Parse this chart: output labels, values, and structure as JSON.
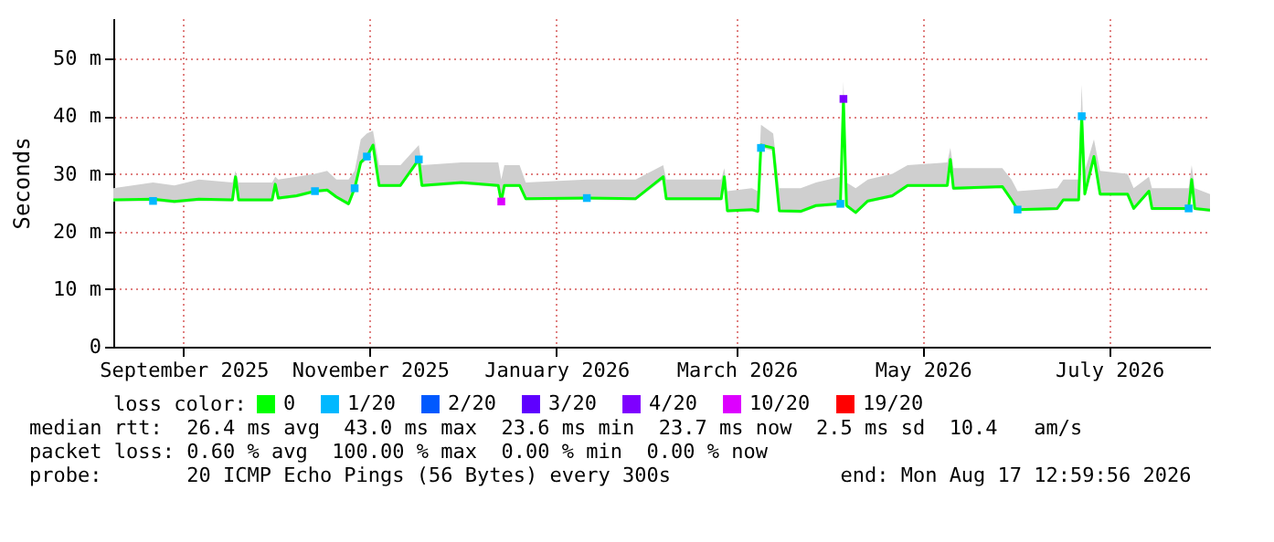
{
  "chart_data": {
    "type": "line",
    "ylabel": "Seconds",
    "legend_title": "loss color:",
    "annotations": [
      "median rtt:  26.4 ms avg  43.0 ms max  23.6 ms min  23.7 ms now  2.5 ms sd  10.4   am/s",
      "packet loss: 0.60 % avg  100.00 % max  0.00 % min  0.00 % now",
      "probe:       20 ICMP Echo Pings (56 Bytes) every 300s              end: Mon Aug 17 12:59:56 2026"
    ],
    "x": [
      "2025-08-23",
      "2025-09-05",
      "2025-09-12",
      "2025-09-20",
      "2025-10-01",
      "2025-10-02",
      "2025-10-03",
      "2025-10-14",
      "2025-10-15",
      "2025-10-16",
      "2025-10-22",
      "2025-10-28",
      "2025-11-01",
      "2025-11-04",
      "2025-11-08",
      "2025-11-10",
      "2025-11-12",
      "2025-11-14",
      "2025-11-16",
      "2025-11-18",
      "2025-11-25",
      "2025-12-01",
      "2025-12-02",
      "2025-12-15",
      "2025-12-27",
      "2025-12-28",
      "2025-12-29",
      "2026-01-03",
      "2026-01-05",
      "2026-01-25",
      "2026-02-10",
      "2026-02-19",
      "2026-02-20",
      "2026-03-10",
      "2026-03-11",
      "2026-03-12",
      "2026-03-20",
      "2026-03-22",
      "2026-03-23",
      "2026-03-27",
      "2026-03-29",
      "2026-04-05",
      "2026-04-10",
      "2026-04-18",
      "2026-04-19",
      "2026-04-20",
      "2026-04-23",
      "2026-04-27",
      "2026-05-05",
      "2026-05-10",
      "2026-05-23",
      "2026-05-24",
      "2026-05-25",
      "2026-06-10",
      "2026-06-13",
      "2026-06-15",
      "2026-06-28",
      "2026-06-30",
      "2026-07-05",
      "2026-07-06",
      "2026-07-07",
      "2026-07-10",
      "2026-07-12",
      "2026-07-21",
      "2026-07-23",
      "2026-07-28",
      "2026-07-29",
      "2026-08-10",
      "2026-08-11",
      "2026-08-12",
      "2026-08-17"
    ],
    "series": [
      {
        "name": "0",
        "color": "#00ff00",
        "values": [
          25.5,
          25.6,
          25.2,
          25.6,
          25.5,
          29.5,
          25.5,
          25.5,
          28.2,
          25.8,
          26.2,
          27,
          27.2,
          26,
          24.8,
          27.5,
          32,
          33,
          35,
          28,
          28,
          32.5,
          28,
          28.5,
          28,
          25.2,
          28,
          28,
          25.7,
          25.8,
          25.7,
          29.5,
          25.7,
          25.7,
          29.5,
          23.6,
          23.8,
          23.5,
          35,
          34.5,
          23.6,
          23.5,
          24.5,
          24.8,
          43,
          24.5,
          23.3,
          25.3,
          26.2,
          28,
          28,
          32.5,
          27.5,
          27.8,
          25.5,
          23.8,
          24,
          25.5,
          25.5,
          40,
          26.5,
          33,
          26.5,
          26.5,
          24,
          27,
          24,
          24,
          29,
          24,
          23.7
        ],
        "lower": [
          25.2,
          25.3,
          24.9,
          25.3,
          25.2,
          29,
          25.2,
          25.2,
          27.8,
          25.5,
          25.9,
          26.7,
          26.9,
          25.7,
          24.5,
          27.2,
          31.5,
          32.5,
          34.5,
          27.7,
          27.7,
          32,
          27.7,
          28.2,
          27.7,
          24.9,
          27.7,
          27.7,
          25.4,
          25.5,
          25.4,
          29,
          25.4,
          25.4,
          29,
          23.3,
          23.5,
          23.2,
          34.5,
          34,
          23.3,
          23.2,
          24.2,
          24.5,
          42.5,
          24.2,
          23,
          25,
          25.9,
          27.7,
          27.7,
          32,
          27.2,
          27.5,
          25.2,
          23.5,
          23.7,
          25.2,
          25.2,
          39.5,
          26.2,
          32.5,
          26.2,
          26.2,
          23.7,
          26.7,
          23.7,
          23.7,
          28.5,
          23.7,
          23.4
        ],
        "upper": [
          27.5,
          28.5,
          28,
          29,
          28.5,
          30.5,
          28.5,
          28.5,
          29.5,
          29,
          29.5,
          30,
          30.5,
          29,
          29,
          30.5,
          36,
          37,
          37.5,
          31.5,
          31.5,
          35,
          31.5,
          32,
          32,
          29,
          31.5,
          31.5,
          28.5,
          29,
          29,
          31.5,
          29,
          29,
          31,
          27,
          27.5,
          27,
          38.5,
          37,
          27.5,
          27.5,
          28.5,
          29.5,
          46,
          28.5,
          27.5,
          29,
          30,
          31.5,
          32,
          34.5,
          31,
          31,
          29,
          27,
          27.5,
          29,
          29,
          45.5,
          30.5,
          36,
          30.5,
          30,
          27.5,
          29.5,
          27.5,
          27.5,
          31.5,
          27.5,
          26.5
        ]
      },
      {
        "name": "1/20",
        "type": "scatter",
        "marker": "square",
        "color": "#00b8ff",
        "values": [
          null,
          25.3,
          null,
          null,
          null,
          null,
          null,
          null,
          null,
          null,
          null,
          27,
          null,
          null,
          null,
          27.5,
          null,
          33,
          null,
          null,
          null,
          32.5,
          null,
          null,
          null,
          null,
          null,
          null,
          null,
          25.8,
          null,
          null,
          null,
          null,
          null,
          null,
          null,
          null,
          34.5,
          null,
          null,
          null,
          null,
          24.8,
          null,
          null,
          null,
          null,
          null,
          null,
          null,
          null,
          null,
          null,
          null,
          23.8,
          null,
          null,
          null,
          40,
          null,
          null,
          null,
          null,
          null,
          null,
          null,
          24,
          null,
          null,
          null
        ]
      },
      {
        "name": "2/20",
        "type": "scatter",
        "marker": "square",
        "color": "#0059ff",
        "values": [
          null,
          null,
          null,
          null,
          null,
          null,
          null,
          null,
          null,
          null,
          null,
          null,
          null,
          null,
          null,
          null,
          null,
          null,
          null,
          null,
          null,
          null,
          null,
          null,
          null,
          null,
          null,
          null,
          null,
          null,
          null,
          null,
          null,
          null,
          null,
          null,
          null,
          null,
          null,
          null,
          null,
          null,
          null,
          null,
          null,
          null,
          null,
          null,
          null,
          null,
          null,
          null,
          null,
          null,
          null,
          null,
          null,
          null,
          null,
          null,
          null,
          null,
          null,
          null,
          null,
          null,
          null,
          null,
          null,
          null,
          null
        ]
      },
      {
        "name": "3/20",
        "type": "scatter",
        "marker": "square",
        "color": "#5e00ff",
        "values": [
          null,
          null,
          null,
          null,
          null,
          null,
          null,
          null,
          null,
          null,
          null,
          null,
          null,
          null,
          null,
          null,
          null,
          null,
          null,
          null,
          null,
          null,
          null,
          null,
          null,
          null,
          null,
          null,
          null,
          null,
          null,
          null,
          null,
          null,
          null,
          null,
          null,
          null,
          null,
          null,
          null,
          null,
          null,
          null,
          null,
          null,
          null,
          null,
          null,
          null,
          null,
          null,
          null,
          null,
          null,
          null,
          null,
          null,
          null,
          null,
          null,
          null,
          null,
          null,
          null,
          null,
          null,
          null,
          null,
          null,
          null
        ]
      },
      {
        "name": "4/20",
        "type": "scatter",
        "marker": "square",
        "color": "#7e00ff",
        "values": [
          null,
          null,
          null,
          null,
          null,
          null,
          null,
          null,
          null,
          null,
          null,
          null,
          null,
          null,
          null,
          null,
          null,
          null,
          null,
          null,
          null,
          null,
          null,
          null,
          null,
          null,
          null,
          null,
          null,
          null,
          null,
          null,
          null,
          null,
          null,
          null,
          null,
          null,
          null,
          null,
          null,
          null,
          null,
          null,
          43,
          null,
          null,
          null,
          null,
          null,
          null,
          null,
          null,
          null,
          null,
          null,
          null,
          null,
          null,
          null,
          null,
          null,
          null,
          null,
          null,
          null,
          null,
          null,
          null,
          null,
          null
        ]
      },
      {
        "name": "10/20",
        "type": "scatter",
        "marker": "square",
        "color": "#dd00ff",
        "values": [
          null,
          null,
          null,
          null,
          null,
          null,
          null,
          null,
          null,
          null,
          null,
          null,
          null,
          null,
          null,
          null,
          null,
          null,
          null,
          null,
          null,
          null,
          null,
          null,
          null,
          25.2,
          null,
          null,
          null,
          null,
          null,
          null,
          null,
          null,
          null,
          null,
          null,
          null,
          null,
          null,
          null,
          null,
          null,
          null,
          null,
          null,
          null,
          null,
          null,
          null,
          null,
          null,
          null,
          null,
          null,
          null,
          null,
          null,
          null,
          null,
          null,
          null,
          null,
          null,
          null,
          null,
          null,
          null,
          null,
          null,
          null
        ]
      },
      {
        "name": "19/20",
        "type": "scatter",
        "marker": "square",
        "color": "#ff0000",
        "values": [
          null,
          null,
          null,
          null,
          null,
          null,
          null,
          null,
          null,
          null,
          null,
          null,
          null,
          null,
          null,
          null,
          null,
          null,
          null,
          null,
          null,
          null,
          null,
          null,
          null,
          null,
          null,
          null,
          null,
          null,
          null,
          null,
          null,
          null,
          null,
          null,
          null,
          null,
          null,
          null,
          null,
          null,
          null,
          null,
          null,
          null,
          null,
          null,
          null,
          null,
          null,
          null,
          null,
          null,
          null,
          null,
          null,
          null,
          null,
          null,
          null,
          null,
          null,
          null,
          null,
          null,
          null,
          null,
          null,
          null,
          null
        ]
      }
    ],
    "xlim": [
      "2025-08-23",
      "2026-08-17"
    ],
    "xticks": [
      {
        "value": "2025-09-15",
        "label": "September 2025"
      },
      {
        "value": "2025-11-15",
        "label": "November 2025"
      },
      {
        "value": "2026-01-15",
        "label": "January 2026"
      },
      {
        "value": "2026-03-15",
        "label": "March 2026"
      },
      {
        "value": "2026-05-15",
        "label": "May 2026"
      },
      {
        "value": "2026-07-15",
        "label": "July 2026"
      }
    ],
    "ylim": [
      0,
      57
    ],
    "yticks": [
      0,
      {
        "value": 10,
        "label": "10 m"
      },
      {
        "value": 20,
        "label": "20 m"
      },
      {
        "value": 30,
        "label": "30 m"
      },
      {
        "value": 40,
        "label": "40 m"
      },
      {
        "value": 50,
        "label": "50 m"
      }
    ],
    "grid": true,
    "legend": "bottom",
    "line_style": "solid"
  }
}
